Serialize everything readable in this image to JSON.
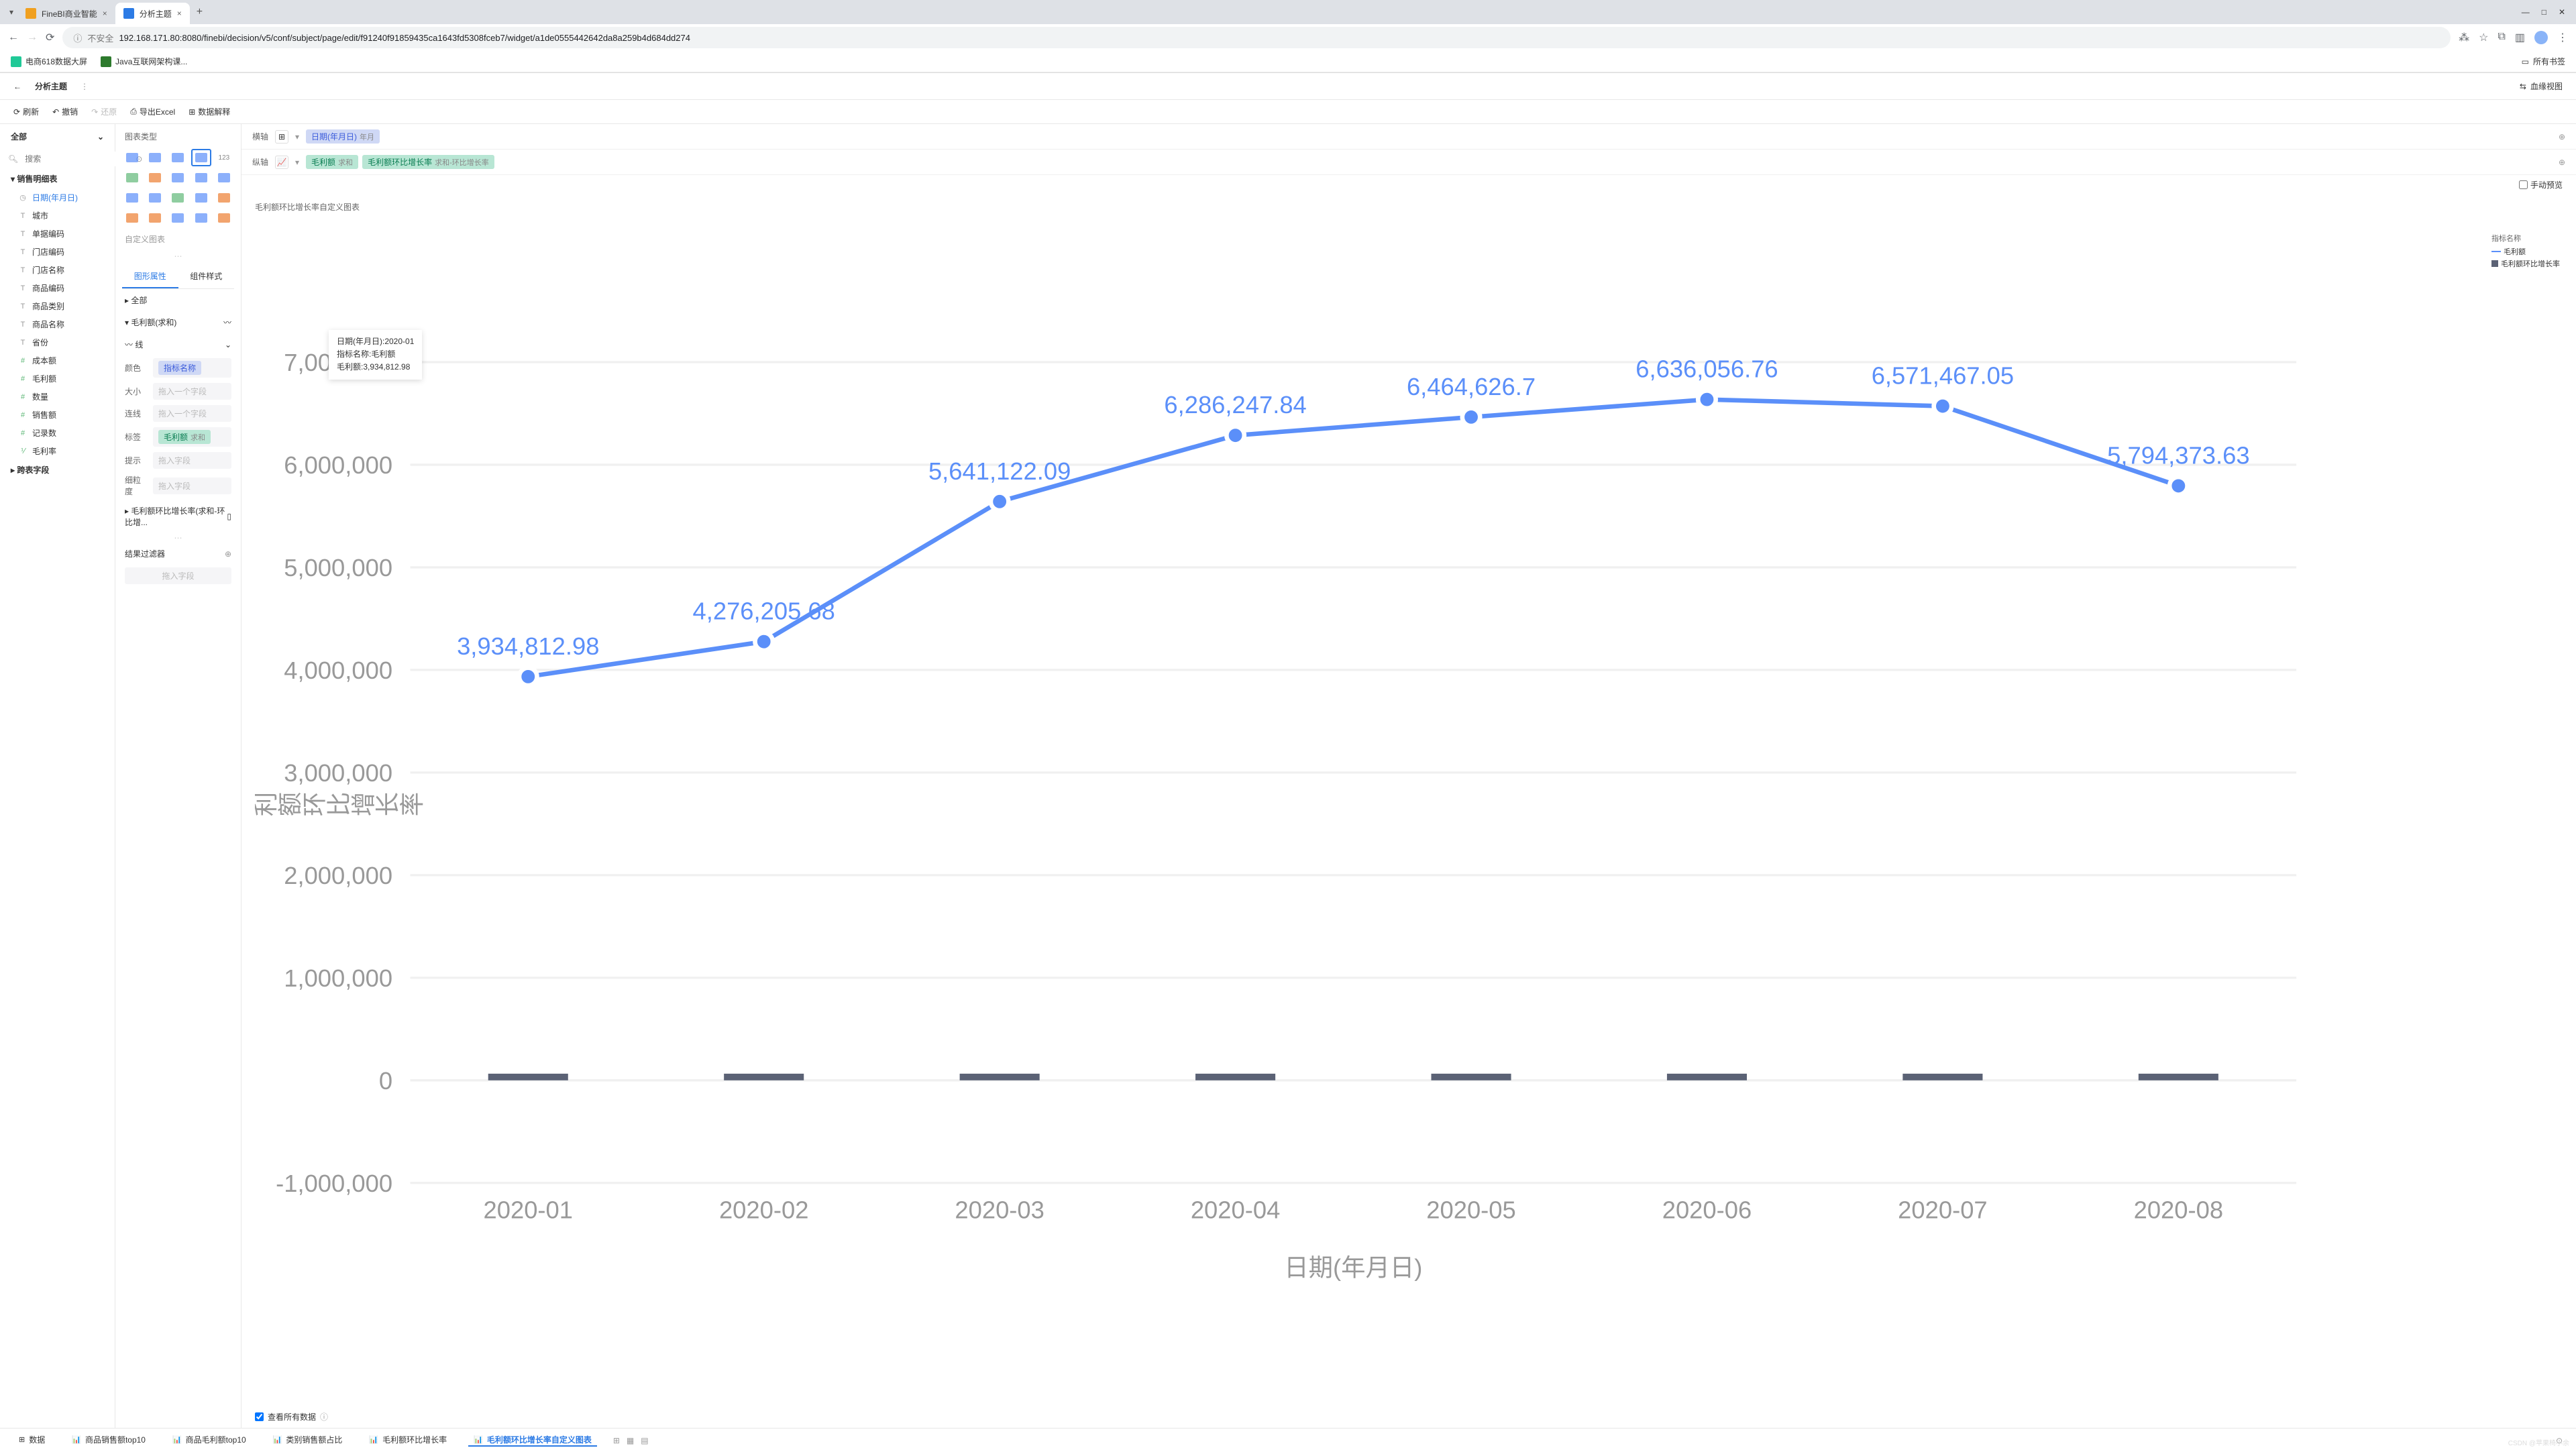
{
  "browser": {
    "tabs": [
      {
        "title": "FineBI商业智能",
        "active": false
      },
      {
        "title": "分析主题",
        "active": true
      }
    ],
    "address_warning": "不安全",
    "url": "192.168.171.80:8080/finebi/decision/v5/conf/subject/page/edit/f91240f91859435ca1643fd5308fceb7/widget/a1de0555442642da8a259b4d684dd274",
    "bookmarks": [
      {
        "label": "电商618数据大屏",
        "color": "#20c997"
      },
      {
        "label": "Java互联网架构课...",
        "color": "#2d7a2d"
      }
    ],
    "all_bookmarks": "所有书签"
  },
  "app": {
    "back_icon": "←",
    "title": "分析主题",
    "menu_icon": "⋮",
    "lineage": "血缘视图"
  },
  "toolbar": {
    "refresh": "刷新",
    "undo": "撤销",
    "redo": "还原",
    "export": "导出Excel",
    "explain": "数据解释"
  },
  "left": {
    "dropdown": "全部",
    "search_ph": "搜索",
    "groups": [
      {
        "label": "销售明细表",
        "expanded": true
      },
      {
        "label": "跨表字段",
        "expanded": false
      }
    ],
    "fields": [
      {
        "icon": "◷",
        "type": "date",
        "label": "日期(年月日)",
        "selected": true
      },
      {
        "icon": "T",
        "type": "text",
        "label": "城市"
      },
      {
        "icon": "T",
        "type": "text",
        "label": "单据编码"
      },
      {
        "icon": "T",
        "type": "text",
        "label": "门店编码"
      },
      {
        "icon": "T",
        "type": "text",
        "label": "门店名称"
      },
      {
        "icon": "T",
        "type": "text",
        "label": "商品编码"
      },
      {
        "icon": "T",
        "type": "text",
        "label": "商品类别"
      },
      {
        "icon": "T",
        "type": "text",
        "label": "商品名称"
      },
      {
        "icon": "T",
        "type": "text",
        "label": "省份"
      },
      {
        "icon": "#",
        "type": "num",
        "label": "成本额"
      },
      {
        "icon": "#",
        "type": "num",
        "label": "毛利额"
      },
      {
        "icon": "#",
        "type": "num",
        "label": "数量"
      },
      {
        "icon": "#",
        "type": "num",
        "label": "销售额"
      },
      {
        "icon": "#",
        "type": "num",
        "label": "记录数"
      },
      {
        "icon": "⅟",
        "type": "rate",
        "label": "毛利率"
      }
    ]
  },
  "mid": {
    "title": "图表类型",
    "custom": "自定义图表",
    "prop_tabs": [
      "图形属性",
      "组件样式"
    ],
    "sections": {
      "all": "全部",
      "measure_sum": "毛利额(求和)",
      "line": "线",
      "color": "颜色",
      "color_tag": "指标名称",
      "size": "大小",
      "size_ph": "拖入一个字段",
      "connect": "连线",
      "connect_ph": "拖入一个字段",
      "label": "标签",
      "label_tag": "毛利额",
      "label_sub": "求和",
      "tip": "提示",
      "tip_ph": "拖入字段",
      "gran": "细粒度",
      "gran_ph": "拖入字段",
      "rate_sect": "毛利额环比增长率(求和-环比增...",
      "filter_title": "结果过滤器",
      "filter_ph": "拖入字段"
    }
  },
  "axes": {
    "x_label": "横轴",
    "x_pill": "日期(年月日)",
    "x_sub": "年月",
    "y_label": "纵轴",
    "y_pill1": "毛利额",
    "y_sub1": "求和",
    "y_pill2": "毛利额环比增长率",
    "y_sub2": "求和-环比增长率"
  },
  "preview": "手动预览",
  "chart": {
    "title": "毛利额环比增长率自定义图表",
    "y_axis_label": "毛利额 毛利额环比增长率",
    "ylim": [
      -1000000,
      7000000
    ],
    "ytick_step": 1000000,
    "x_label": "日期(年月日)",
    "categories": [
      "2020-01",
      "2020-02",
      "2020-03",
      "2020-04",
      "2020-05",
      "2020-06",
      "2020-07",
      "2020-08"
    ],
    "values": [
      3934812.98,
      4276205.68,
      5641122.09,
      6286247.84,
      6464626.7,
      6636056.76,
      6571467.05,
      5794373.63
    ],
    "line_color": "#5b8ff9",
    "bar_color": "#5b6275",
    "grid_color": "#f0f0f0",
    "background": "#ffffff",
    "legend": {
      "title": "指标名称",
      "items": [
        {
          "label": "毛利额",
          "color": "#5b8ff9",
          "type": "line"
        },
        {
          "label": "毛利额环比增长率",
          "color": "#5b6275",
          "type": "bar"
        }
      ]
    },
    "tooltip": {
      "line1": "日期(年月日):2020-01",
      "line2": "指标名称:毛利额",
      "line3": "毛利额:3,934,812.98"
    }
  },
  "view_all": "查看所有数据",
  "bottom_tabs": [
    {
      "label": "数据",
      "icon": "⊞"
    },
    {
      "label": "商品销售额top10",
      "icon": "📊"
    },
    {
      "label": "商品毛利额top10",
      "icon": "📊"
    },
    {
      "label": "类别销售额占比",
      "icon": "📊"
    },
    {
      "label": "毛利额环比增长率",
      "icon": "📊"
    },
    {
      "label": "毛利额环比增长率自定义图表",
      "icon": "📊",
      "active": true
    }
  ],
  "watermark": "CSDN @苹果椅小余"
}
